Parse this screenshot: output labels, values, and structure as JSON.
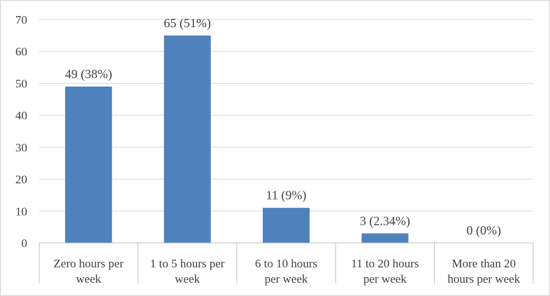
{
  "chart_data": {
    "type": "bar",
    "title": "",
    "xlabel": "",
    "ylabel": "",
    "ylim": [
      0,
      70
    ],
    "yticks": [
      0,
      10,
      20,
      30,
      40,
      50,
      60,
      70
    ],
    "grid": true,
    "categories": [
      [
        "Zero hours per",
        "week"
      ],
      [
        "1 to 5 hours per",
        "week"
      ],
      [
        "6 to 10 hours",
        "per week"
      ],
      [
        "11 to 20 hours",
        "per week"
      ],
      [
        "More than 20",
        "hours per week"
      ]
    ],
    "values": [
      49,
      65,
      11,
      3,
      0
    ],
    "data_labels": [
      "49 (38%)",
      "65 (51%)",
      "11 (9%)",
      "3 (2.34%)",
      "0 (0%)"
    ],
    "bar_color": "#4f81bd",
    "grid_color": "#d9d9d9",
    "axis_color": "#bfbfbf",
    "text_color": "#404040"
  }
}
